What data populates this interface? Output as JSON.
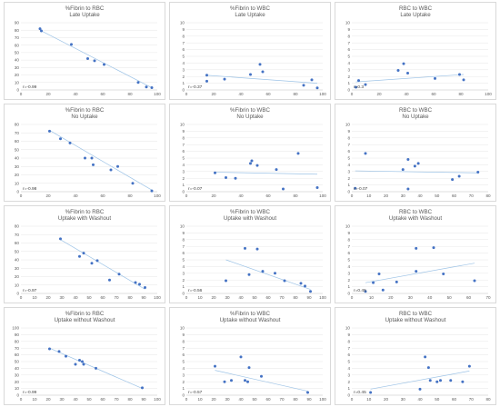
{
  "chart_data": [
    {
      "type": "scatter",
      "title": "%Fibrin to RBC",
      "subtitle": "Late Uptake",
      "annotation": "r=-0.99",
      "xlim": [
        0,
        100
      ],
      "ylim": [
        0,
        90
      ],
      "xticks": [
        0,
        20,
        40,
        60,
        80,
        100
      ],
      "yticks": [
        0,
        10,
        20,
        30,
        40,
        50,
        60,
        70,
        80,
        90
      ],
      "points": [
        [
          14,
          82
        ],
        [
          15,
          79
        ],
        [
          37,
          61
        ],
        [
          49,
          42
        ],
        [
          54,
          39
        ],
        [
          61,
          34
        ],
        [
          86,
          10
        ],
        [
          92,
          4
        ],
        [
          96,
          3
        ]
      ],
      "trend": [
        [
          14,
          80
        ],
        [
          96,
          3
        ]
      ]
    },
    {
      "type": "scatter",
      "title": "%Fibrin to WBC",
      "subtitle": "Late Uptake",
      "annotation": "r=-0.37",
      "xlim": [
        0,
        100
      ],
      "ylim": [
        0,
        10
      ],
      "xticks": [
        0,
        20,
        40,
        60,
        80,
        100
      ],
      "yticks": [
        0,
        1,
        2,
        3,
        4,
        5,
        6,
        7,
        8,
        9,
        10
      ],
      "points": [
        [
          15,
          1.3
        ],
        [
          15,
          2.2
        ],
        [
          28,
          1.6
        ],
        [
          47,
          2.3
        ],
        [
          54,
          3.8
        ],
        [
          56,
          2.7
        ],
        [
          86,
          0.7
        ],
        [
          92,
          1.5
        ],
        [
          96,
          0.3
        ]
      ],
      "trend": [
        [
          14,
          2.2
        ],
        [
          96,
          1.0
        ]
      ]
    },
    {
      "type": "scatter",
      "title": "RBC to WBC",
      "subtitle": "Late Uptake",
      "annotation": "r=0.3",
      "xlim": [
        0,
        100
      ],
      "ylim": [
        0,
        10
      ],
      "xticks": [
        0,
        20,
        40,
        60,
        80,
        100
      ],
      "yticks": [
        0,
        1,
        2,
        3,
        4,
        5,
        6,
        7,
        8,
        9,
        10
      ],
      "points": [
        [
          3,
          0.4
        ],
        [
          5,
          1.4
        ],
        [
          10,
          0.8
        ],
        [
          34,
          2.9
        ],
        [
          38,
          3.9
        ],
        [
          41,
          2.5
        ],
        [
          61,
          1.7
        ],
        [
          79,
          2.3
        ],
        [
          82,
          1.5
        ]
      ],
      "trend": [
        [
          3,
          1.2
        ],
        [
          82,
          2.3
        ]
      ]
    },
    {
      "type": "scatter",
      "title": "%Fibrin to RBC",
      "subtitle": "No Uptake",
      "annotation": "r=-0.98",
      "xlim": [
        0,
        100
      ],
      "ylim": [
        0,
        80
      ],
      "xticks": [
        0,
        20,
        40,
        60,
        80,
        100
      ],
      "yticks": [
        0,
        10,
        20,
        30,
        40,
        50,
        60,
        70,
        80
      ],
      "points": [
        [
          21,
          72
        ],
        [
          29,
          63
        ],
        [
          36,
          58
        ],
        [
          47,
          40
        ],
        [
          52,
          40
        ],
        [
          53,
          32
        ],
        [
          66,
          26
        ],
        [
          71,
          30
        ],
        [
          82,
          10
        ],
        [
          96,
          1
        ]
      ],
      "trend": [
        [
          21,
          73
        ],
        [
          96,
          2
        ]
      ]
    },
    {
      "type": "scatter",
      "title": "%Fibrin to WBC",
      "subtitle": "No Uptake",
      "annotation": "r=-0.07",
      "xlim": [
        0,
        100
      ],
      "ylim": [
        0,
        10
      ],
      "xticks": [
        0,
        20,
        40,
        60,
        80,
        100
      ],
      "yticks": [
        0,
        1,
        2,
        3,
        4,
        5,
        6,
        7,
        8,
        9,
        10
      ],
      "points": [
        [
          21,
          2.8
        ],
        [
          29,
          2.1
        ],
        [
          36,
          2.0
        ],
        [
          47,
          4.2
        ],
        [
          48,
          4.6
        ],
        [
          52,
          3.9
        ],
        [
          66,
          3.3
        ],
        [
          71,
          0.4
        ],
        [
          82,
          5.7
        ],
        [
          96,
          0.6
        ]
      ],
      "trend": [
        [
          21,
          2.9
        ],
        [
          96,
          2.6
        ]
      ]
    },
    {
      "type": "scatter",
      "title": "RBC to WBC",
      "subtitle": "No Uptake",
      "annotation": "r=-0.07",
      "xlim": [
        0,
        80
      ],
      "ylim": [
        0,
        10
      ],
      "xticks": [
        0,
        10,
        20,
        30,
        40,
        50,
        60,
        70,
        80
      ],
      "yticks": [
        0,
        1,
        2,
        3,
        4,
        5,
        6,
        7,
        8,
        9,
        10
      ],
      "points": [
        [
          2,
          0.5
        ],
        [
          8,
          5.7
        ],
        [
          30,
          3.3
        ],
        [
          33,
          4.8
        ],
        [
          37,
          3.8
        ],
        [
          39,
          4.2
        ],
        [
          33,
          0.4
        ],
        [
          59,
          1.8
        ],
        [
          63,
          2.3
        ],
        [
          74,
          2.9
        ]
      ],
      "trend": [
        [
          2,
          3.1
        ],
        [
          74,
          2.8
        ]
      ]
    },
    {
      "type": "scatter",
      "title": "%Fibrin to RBC",
      "subtitle": "Uptake with Washout",
      "annotation": "r=-0.97",
      "xlim": [
        0,
        100
      ],
      "ylim": [
        0,
        80
      ],
      "xticks": [
        0,
        10,
        20,
        30,
        40,
        50,
        60,
        70,
        80,
        90,
        100
      ],
      "yticks": [
        0,
        10,
        20,
        30,
        40,
        50,
        60,
        70,
        80
      ],
      "points": [
        [
          29,
          65
        ],
        [
          43,
          44
        ],
        [
          46,
          48
        ],
        [
          52,
          36
        ],
        [
          56,
          39
        ],
        [
          65,
          16
        ],
        [
          72,
          23
        ],
        [
          84,
          13
        ],
        [
          87,
          11
        ],
        [
          91,
          7
        ]
      ],
      "trend": [
        [
          29,
          64
        ],
        [
          91,
          5
        ]
      ]
    },
    {
      "type": "scatter",
      "title": "%Fibrin to WBC",
      "subtitle": "Uptake with Washout",
      "annotation": "r=-0.56",
      "xlim": [
        0,
        100
      ],
      "ylim": [
        0,
        10
      ],
      "xticks": [
        0,
        10,
        20,
        30,
        40,
        50,
        60,
        70,
        80,
        90,
        100
      ],
      "yticks": [
        0,
        1,
        2,
        3,
        4,
        5,
        6,
        7,
        8,
        9,
        10
      ],
      "points": [
        [
          29,
          1.9
        ],
        [
          43,
          6.7
        ],
        [
          46,
          2.8
        ],
        [
          52,
          6.6
        ],
        [
          56,
          3.3
        ],
        [
          65,
          3.0
        ],
        [
          72,
          1.9
        ],
        [
          84,
          1.5
        ],
        [
          87,
          1.1
        ],
        [
          91,
          0.3
        ]
      ],
      "trend": [
        [
          29,
          5.0
        ],
        [
          91,
          0.6
        ]
      ]
    },
    {
      "type": "scatter",
      "title": "RBC to WBC",
      "subtitle": "Uptake with Washout",
      "annotation": "r=0.45",
      "xlim": [
        0,
        70
      ],
      "ylim": [
        0,
        10
      ],
      "xticks": [
        0,
        10,
        20,
        30,
        40,
        50,
        60,
        70
      ],
      "yticks": [
        0,
        1,
        2,
        3,
        4,
        5,
        6,
        7,
        8,
        9,
        10
      ],
      "points": [
        [
          7,
          0.3
        ],
        [
          11,
          1.6
        ],
        [
          14,
          2.9
        ],
        [
          16,
          0.5
        ],
        [
          23,
          1.7
        ],
        [
          33,
          3.3
        ],
        [
          33,
          6.7
        ],
        [
          42,
          6.8
        ],
        [
          47,
          2.9
        ],
        [
          63,
          1.9
        ]
      ],
      "trend": [
        [
          7,
          1.6
        ],
        [
          63,
          4.5
        ]
      ]
    },
    {
      "type": "scatter",
      "title": "%Fibrin to RBC",
      "subtitle": "Uptake without Washout",
      "annotation": "r=-0.99",
      "xlim": [
        0,
        100
      ],
      "ylim": [
        0,
        100
      ],
      "xticks": [
        0,
        10,
        20,
        30,
        40,
        50,
        60,
        70,
        80,
        90,
        100
      ],
      "yticks": [
        0,
        10,
        20,
        30,
        40,
        50,
        60,
        70,
        80,
        90,
        100
      ],
      "points": [
        [
          21,
          69
        ],
        [
          28,
          65
        ],
        [
          33,
          58
        ],
        [
          40,
          46
        ],
        [
          43,
          52
        ],
        [
          45,
          50
        ],
        [
          46,
          46
        ],
        [
          55,
          40
        ],
        [
          89,
          11
        ]
      ],
      "trend": [
        [
          21,
          70
        ],
        [
          89,
          10
        ]
      ]
    },
    {
      "type": "scatter",
      "title": "%Fibrin to WBC",
      "subtitle": "Uptake without Washout",
      "annotation": "r=-0.57",
      "xlim": [
        0,
        100
      ],
      "ylim": [
        0,
        10
      ],
      "xticks": [
        0,
        10,
        20,
        30,
        40,
        50,
        60,
        70,
        80,
        90,
        100
      ],
      "yticks": [
        0,
        1,
        2,
        3,
        4,
        5,
        6,
        7,
        8,
        9,
        10
      ],
      "points": [
        [
          21,
          4.3
        ],
        [
          28,
          2.0
        ],
        [
          33,
          2.2
        ],
        [
          40,
          5.7
        ],
        [
          43,
          2.2
        ],
        [
          45,
          2.0
        ],
        [
          46,
          4.1
        ],
        [
          55,
          2.8
        ],
        [
          89,
          0.4
        ]
      ],
      "trend": [
        [
          21,
          3.7
        ],
        [
          89,
          0.6
        ]
      ]
    },
    {
      "type": "scatter",
      "title": "RBC to WBC",
      "subtitle": "Uptake without Washout",
      "annotation": "r=0.45",
      "xlim": [
        0,
        80
      ],
      "ylim": [
        0,
        10
      ],
      "xticks": [
        0,
        10,
        20,
        30,
        40,
        50,
        60,
        70,
        80
      ],
      "yticks": [
        0,
        1,
        2,
        3,
        4,
        5,
        6,
        7,
        8,
        9,
        10
      ],
      "points": [
        [
          11,
          0.4
        ],
        [
          40,
          0.9
        ],
        [
          43,
          5.7
        ],
        [
          45,
          4.1
        ],
        [
          46,
          2.2
        ],
        [
          50,
          2.0
        ],
        [
          52,
          2.2
        ],
        [
          58,
          2.2
        ],
        [
          65,
          2.0
        ],
        [
          69,
          4.3
        ]
      ],
      "trend": [
        [
          11,
          0.9
        ],
        [
          69,
          3.6
        ]
      ]
    }
  ]
}
